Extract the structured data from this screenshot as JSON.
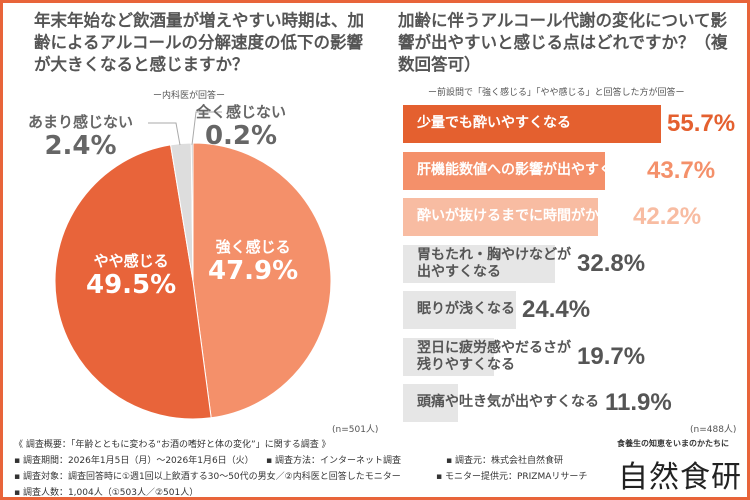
{
  "left": {
    "title": "年末年始など飲酒量が増えやすい時期は、加齢によるアルコールの分解速度の低下の影響が大きくなると感じますか？",
    "subtitle": "ー内科医が回答ー",
    "n": "(n=501人)"
  },
  "right": {
    "title": "加齢に伴うアルコール代謝の変化について影響が出やすいと感じる点はどれですか？（複数回答可）",
    "subtitle": "ー前設問で「強く感じる」「やや感じる」と回答した方が回答ー",
    "n": "(n=488人)"
  },
  "chart_data": [
    {
      "type": "pie",
      "slices": [
        {
          "label": "強く感じる",
          "value": 47.9,
          "display": "47.9%",
          "color": "#f4906a"
        },
        {
          "label": "やや感じる",
          "value": 49.5,
          "display": "49.5%",
          "color": "#e8643a"
        },
        {
          "label": "あまり感じない",
          "value": 2.4,
          "display": "2.4%",
          "color": "#dddddd"
        },
        {
          "label": "全く感じない",
          "value": 0.2,
          "display": "0.2%",
          "color": "#bbbbbb"
        }
      ]
    },
    {
      "type": "bar",
      "orientation": "horizontal",
      "categories": [
        "少量でも酔いやすくなる",
        "肝機能数値への影響が出やすくなる",
        "酔いが抜けるまでに時間がかかる",
        "胃もたれ・胸やけなどが\n出やすくなる",
        "眠りが浅くなる",
        "翌日に疲労感やだるさが\n残りやすくなる",
        "頭痛や吐き気が出やすくなる"
      ],
      "values": [
        55.7,
        43.7,
        42.2,
        32.8,
        24.4,
        19.7,
        11.9
      ],
      "display": [
        "55.7%",
        "43.7%",
        "42.2%",
        "32.8%",
        "24.4%",
        "19.7%",
        "11.9%"
      ],
      "colors": [
        "#e4602f",
        "#f4906a",
        "#f8bca2",
        "#e6e6e6",
        "#e6e6e6",
        "#e6e6e6",
        "#e6e6e6"
      ],
      "label_colors": [
        "#ffffff",
        "#ffffff",
        "#ffffff",
        "#555555",
        "#555555",
        "#555555",
        "#555555"
      ],
      "value_colors": [
        "#e4602f",
        "#f4906a",
        "#f8bca2",
        "#555555",
        "#555555",
        "#555555",
        "#555555"
      ]
    }
  ],
  "footer": {
    "overview": "《 調査概要：「年齢とともに変わる“お酒の嗜好と体の変化”」に関する調査 》",
    "period": "▪ 調査期間：2026年1月5日（月）～2026年1月6日（火）",
    "method": "▪ 調査方法：インターネット調査",
    "source": "▪ 調査元：株式会社自然食研",
    "target": "▪ 調査対象：調査回答時に①週1回以上飲酒する30～50代の男女／②内科医と回答したモニター",
    "provider": "▪ モニター提供元：PRIZMAリサーチ",
    "count": "▪ 調査人数：1,004人（①503人／②501人）",
    "brand_tagline": "食養生の知恵をいまのかたちに",
    "brand": "自然食研"
  }
}
